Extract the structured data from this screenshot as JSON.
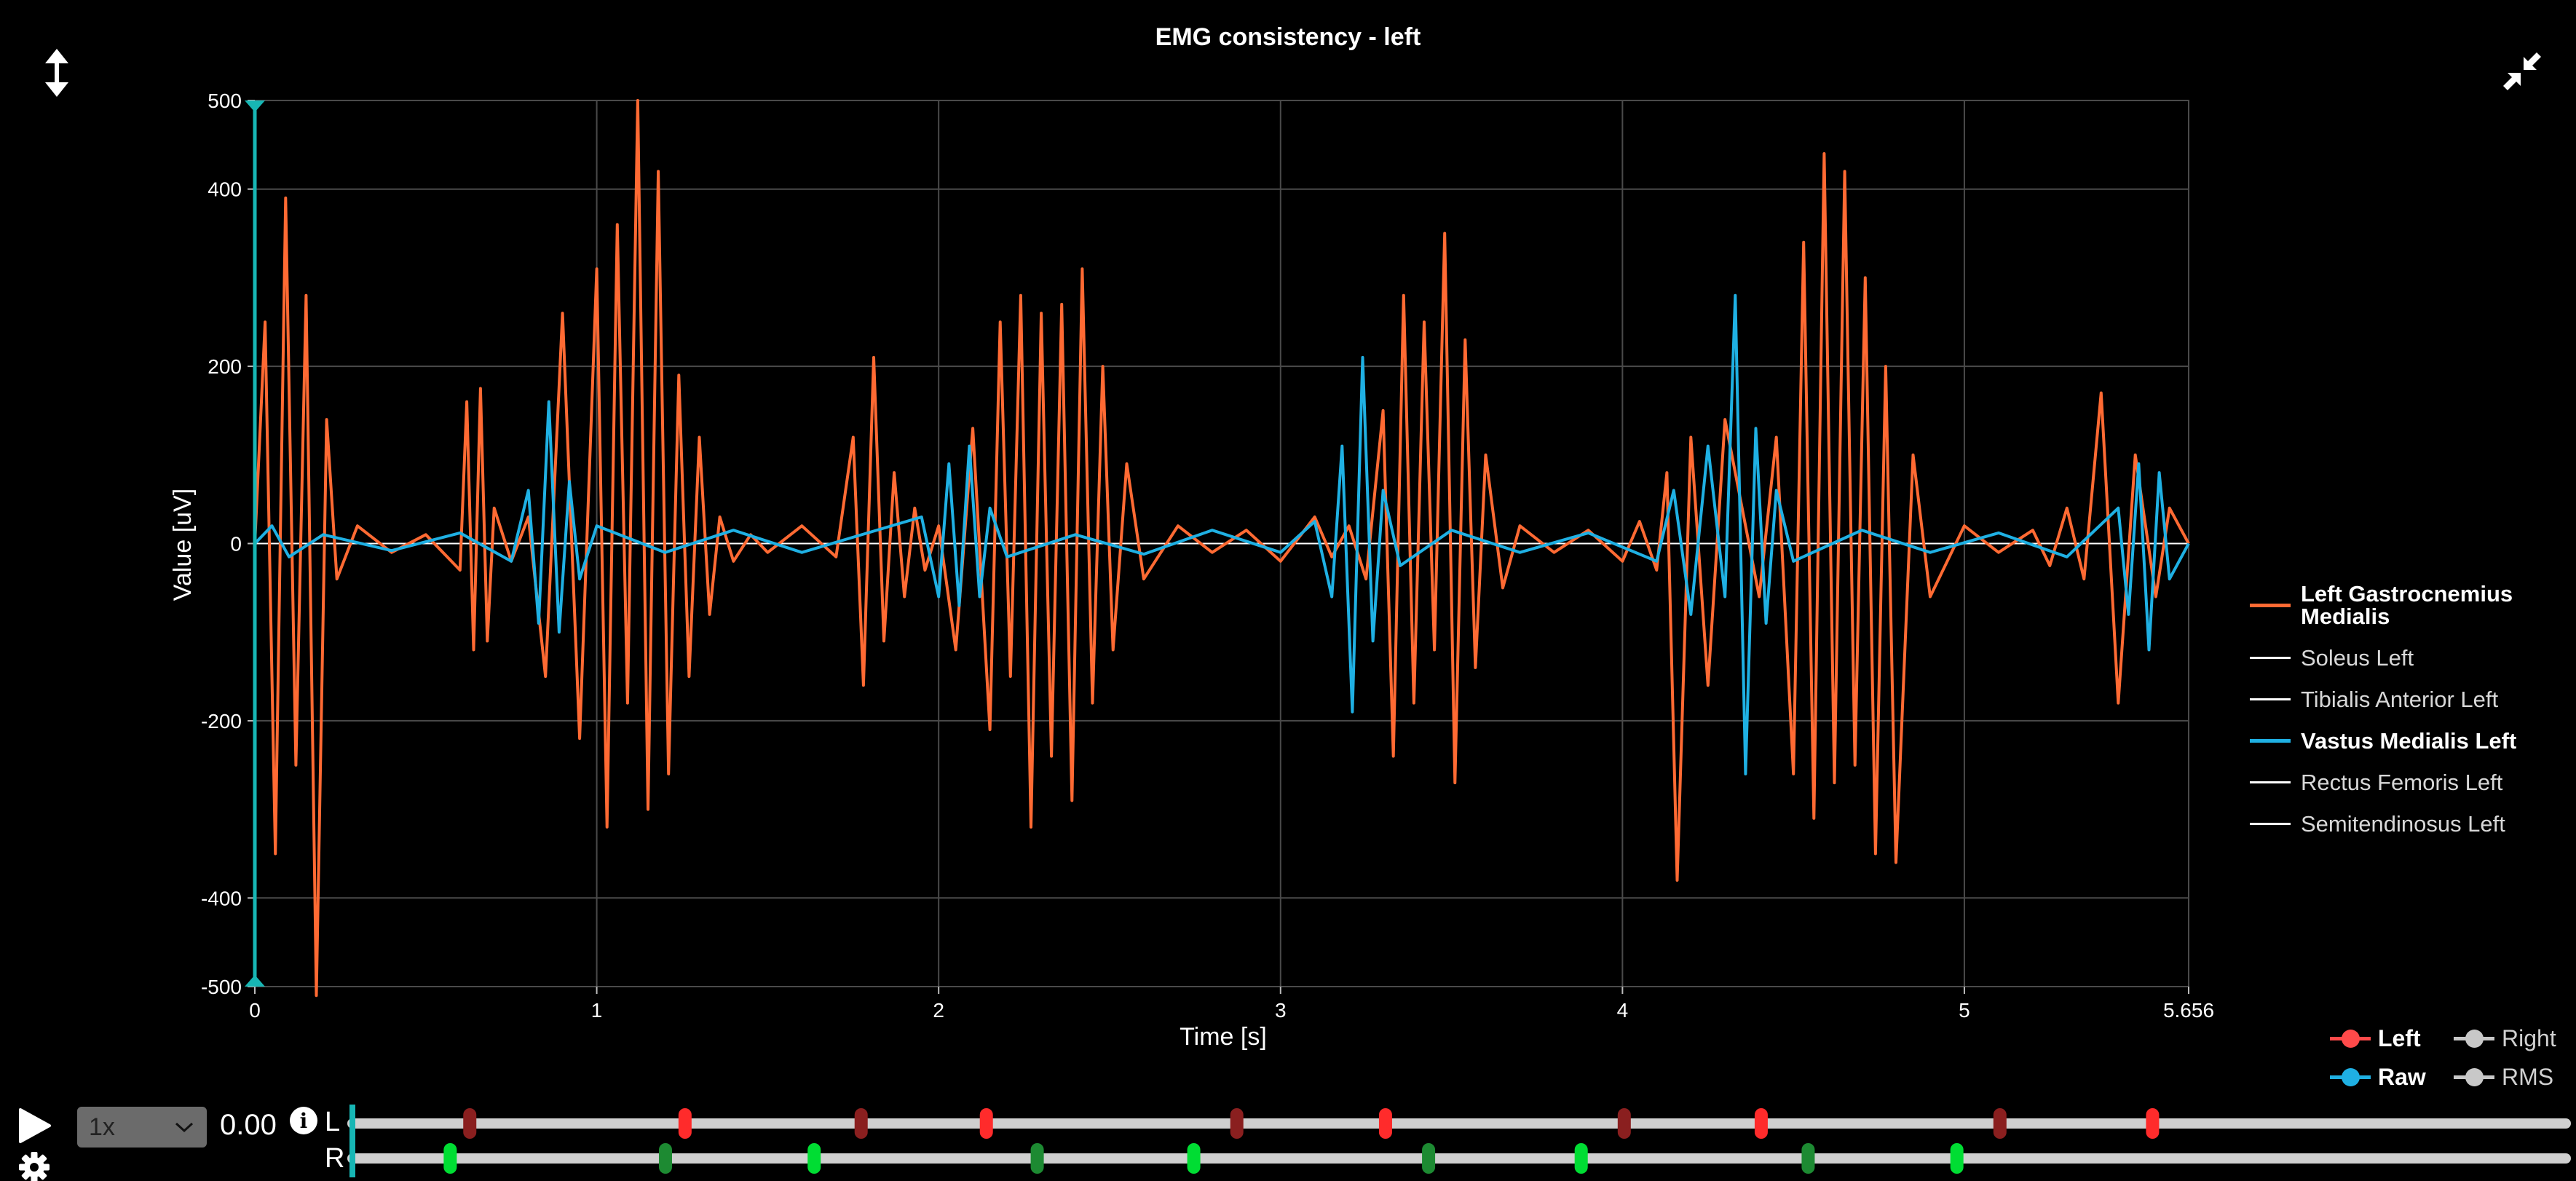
{
  "window": {
    "title": "EMG consistency - left"
  },
  "icons": {
    "resize_vertical": "vertical-resize-icon",
    "collapse": "collapse-icon",
    "play": "play-icon",
    "settings": "gear-icon",
    "info": "info-icon",
    "info_glyph": "i",
    "dropdown": "chevron-down-icon"
  },
  "colors": {
    "background": "#000000",
    "gastrocnemius": "#ff6a33",
    "vastus": "#1fb0e3",
    "inactive_series": "#ffffff",
    "cursor": "#17b6b4",
    "grid": "#4a4a4a",
    "left_marker": "#ff2b2b",
    "left_marker_dim": "#8a1f1f",
    "right_marker": "#00dd33",
    "right_marker_dim": "#1d8a32",
    "track": "#cfcfcf"
  },
  "legend": [
    {
      "label": "Left Gastrocnemius Medialis",
      "color": "#ff6a33",
      "active": true
    },
    {
      "label": "Soleus Left",
      "color": "#ffffff",
      "active": false
    },
    {
      "label": "Tibialis Anterior Left",
      "color": "#ffffff",
      "active": false
    },
    {
      "label": "Vastus Medialis Left",
      "color": "#1fb0e3",
      "active": true
    },
    {
      "label": "Rectus Femoris Left",
      "color": "#ffffff",
      "active": false
    },
    {
      "label": "Semitendinosus Left",
      "color": "#ffffff",
      "active": false
    }
  ],
  "mode_legend": {
    "left": {
      "label": "Left",
      "color": "#ff4a4a"
    },
    "right": {
      "label": "Right",
      "color": "#c8c8c8"
    },
    "raw": {
      "label": "Raw",
      "color": "#1fb0e3"
    },
    "rms": {
      "label": "RMS",
      "color": "#c8c8c8"
    }
  },
  "controls": {
    "speed": "1x",
    "time": "0.00",
    "track_left_label": "L",
    "track_right_label": "R"
  },
  "playback_tracks": {
    "duration": 5.656,
    "left_events": [
      {
        "t": 0.3,
        "strong": false
      },
      {
        "t": 0.85,
        "strong": true
      },
      {
        "t": 1.3,
        "strong": false
      },
      {
        "t": 1.62,
        "strong": true
      },
      {
        "t": 2.26,
        "strong": false
      },
      {
        "t": 2.64,
        "strong": true
      },
      {
        "t": 3.25,
        "strong": false
      },
      {
        "t": 3.6,
        "strong": true
      },
      {
        "t": 4.21,
        "strong": false
      },
      {
        "t": 4.6,
        "strong": true
      }
    ],
    "right_events": [
      {
        "t": 0.25,
        "strong": true
      },
      {
        "t": 0.8,
        "strong": false
      },
      {
        "t": 1.18,
        "strong": true
      },
      {
        "t": 1.75,
        "strong": false
      },
      {
        "t": 2.15,
        "strong": true
      },
      {
        "t": 2.75,
        "strong": false
      },
      {
        "t": 3.14,
        "strong": true
      },
      {
        "t": 3.72,
        "strong": false
      },
      {
        "t": 4.1,
        "strong": true
      }
    ]
  },
  "chart_data": {
    "type": "line",
    "title": "EMG consistency - left",
    "xlabel": "Time [s]",
    "ylabel": "Value [uV]",
    "xlim": [
      0,
      5.656
    ],
    "ylim": [
      -500,
      500
    ],
    "x_ticks": [
      "0",
      "1",
      "2",
      "3",
      "4",
      "5",
      "5.656"
    ],
    "x_tick_values": [
      0,
      1,
      2,
      3,
      4,
      5,
      5.656
    ],
    "y_ticks": [
      "-500",
      "-400",
      "-200",
      "0",
      "200",
      "400",
      "500"
    ],
    "y_tick_values": [
      -500,
      -400,
      -200,
      0,
      200,
      400,
      500
    ],
    "grid": true,
    "legend_position": "right",
    "cursor_x": 0,
    "series": [
      {
        "name": "Left Gastrocnemius Medialis",
        "color": "#ff6a33",
        "x": [
          0.0,
          0.03,
          0.06,
          0.09,
          0.12,
          0.15,
          0.18,
          0.21,
          0.24,
          0.3,
          0.4,
          0.5,
          0.6,
          0.62,
          0.64,
          0.66,
          0.68,
          0.7,
          0.75,
          0.8,
          0.85,
          0.9,
          0.95,
          1.0,
          1.03,
          1.06,
          1.09,
          1.12,
          1.15,
          1.18,
          1.21,
          1.24,
          1.27,
          1.3,
          1.33,
          1.36,
          1.4,
          1.45,
          1.5,
          1.6,
          1.7,
          1.75,
          1.78,
          1.81,
          1.84,
          1.87,
          1.9,
          1.93,
          1.96,
          2.0,
          2.05,
          2.1,
          2.15,
          2.18,
          2.21,
          2.24,
          2.27,
          2.3,
          2.33,
          2.36,
          2.39,
          2.42,
          2.45,
          2.48,
          2.51,
          2.55,
          2.6,
          2.7,
          2.8,
          2.9,
          3.0,
          3.1,
          3.15,
          3.2,
          3.25,
          3.3,
          3.33,
          3.36,
          3.39,
          3.42,
          3.45,
          3.48,
          3.51,
          3.54,
          3.57,
          3.6,
          3.65,
          3.7,
          3.8,
          3.9,
          4.0,
          4.05,
          4.1,
          4.13,
          4.16,
          4.2,
          4.25,
          4.3,
          4.4,
          4.45,
          4.5,
          4.53,
          4.56,
          4.59,
          4.62,
          4.65,
          4.68,
          4.71,
          4.74,
          4.77,
          4.8,
          4.85,
          4.9,
          5.0,
          5.1,
          5.2,
          5.25,
          5.3,
          5.35,
          5.4,
          5.45,
          5.5,
          5.56,
          5.6,
          5.656
        ],
        "values": [
          0,
          250,
          -350,
          390,
          -250,
          280,
          -510,
          140,
          -40,
          20,
          -10,
          10,
          -30,
          160,
          -120,
          175,
          -110,
          40,
          -20,
          30,
          -150,
          260,
          -220,
          310,
          -320,
          360,
          -180,
          500,
          -300,
          420,
          -260,
          190,
          -150,
          120,
          -80,
          30,
          -20,
          10,
          -10,
          20,
          -15,
          120,
          -160,
          210,
          -110,
          80,
          -60,
          40,
          -30,
          20,
          -120,
          130,
          -210,
          250,
          -150,
          280,
          -320,
          260,
          -240,
          270,
          -290,
          310,
          -180,
          200,
          -120,
          90,
          -40,
          20,
          -10,
          15,
          -20,
          30,
          -15,
          20,
          -40,
          150,
          -240,
          280,
          -180,
          250,
          -120,
          350,
          -270,
          230,
          -140,
          100,
          -50,
          20,
          -10,
          15,
          -20,
          25,
          -30,
          80,
          -380,
          120,
          -160,
          140,
          -60,
          120,
          -260,
          340,
          -310,
          440,
          -270,
          420,
          -250,
          300,
          -350,
          200,
          -360,
          100,
          -60,
          20,
          -10,
          15,
          -25,
          40,
          -40,
          170,
          -180,
          100,
          -60,
          40,
          0
        ]
      },
      {
        "name": "Vastus Medialis Left",
        "color": "#1fb0e3",
        "x": [
          0.0,
          0.05,
          0.1,
          0.2,
          0.4,
          0.6,
          0.75,
          0.8,
          0.83,
          0.86,
          0.89,
          0.92,
          0.95,
          1.0,
          1.2,
          1.4,
          1.6,
          1.95,
          2.0,
          2.03,
          2.06,
          2.09,
          2.12,
          2.15,
          2.2,
          2.4,
          2.6,
          2.8,
          3.0,
          3.1,
          3.15,
          3.18,
          3.21,
          3.24,
          3.27,
          3.3,
          3.35,
          3.5,
          3.7,
          3.9,
          4.1,
          4.15,
          4.2,
          4.25,
          4.3,
          4.33,
          4.36,
          4.39,
          4.42,
          4.45,
          4.5,
          4.7,
          4.9,
          5.1,
          5.3,
          5.45,
          5.48,
          5.51,
          5.54,
          5.57,
          5.6,
          5.656
        ],
        "values": [
          0,
          20,
          -15,
          10,
          -8,
          12,
          -20,
          60,
          -90,
          160,
          -100,
          70,
          -40,
          20,
          -10,
          15,
          -10,
          30,
          -60,
          90,
          -70,
          110,
          -60,
          40,
          -15,
          10,
          -12,
          15,
          -10,
          25,
          -60,
          110,
          -190,
          210,
          -110,
          60,
          -25,
          15,
          -10,
          12,
          -20,
          60,
          -80,
          110,
          -60,
          280,
          -260,
          130,
          -90,
          60,
          -20,
          15,
          -10,
          12,
          -15,
          40,
          -80,
          90,
          -120,
          80,
          -40,
          0
        ]
      },
      {
        "name": "Soleus Left",
        "color": "#ffffff",
        "x": [
          0,
          5.656
        ],
        "values": [
          0,
          0
        ]
      },
      {
        "name": "Tibialis Anterior Left",
        "color": "#ffffff",
        "x": [
          0,
          5.656
        ],
        "values": [
          0,
          0
        ]
      },
      {
        "name": "Rectus Femoris Left",
        "color": "#ffffff",
        "x": [
          0,
          5.656
        ],
        "values": [
          0,
          0
        ]
      },
      {
        "name": "Semitendinosus Left",
        "color": "#ffffff",
        "x": [
          0,
          5.656
        ],
        "values": [
          0,
          0
        ]
      }
    ]
  }
}
